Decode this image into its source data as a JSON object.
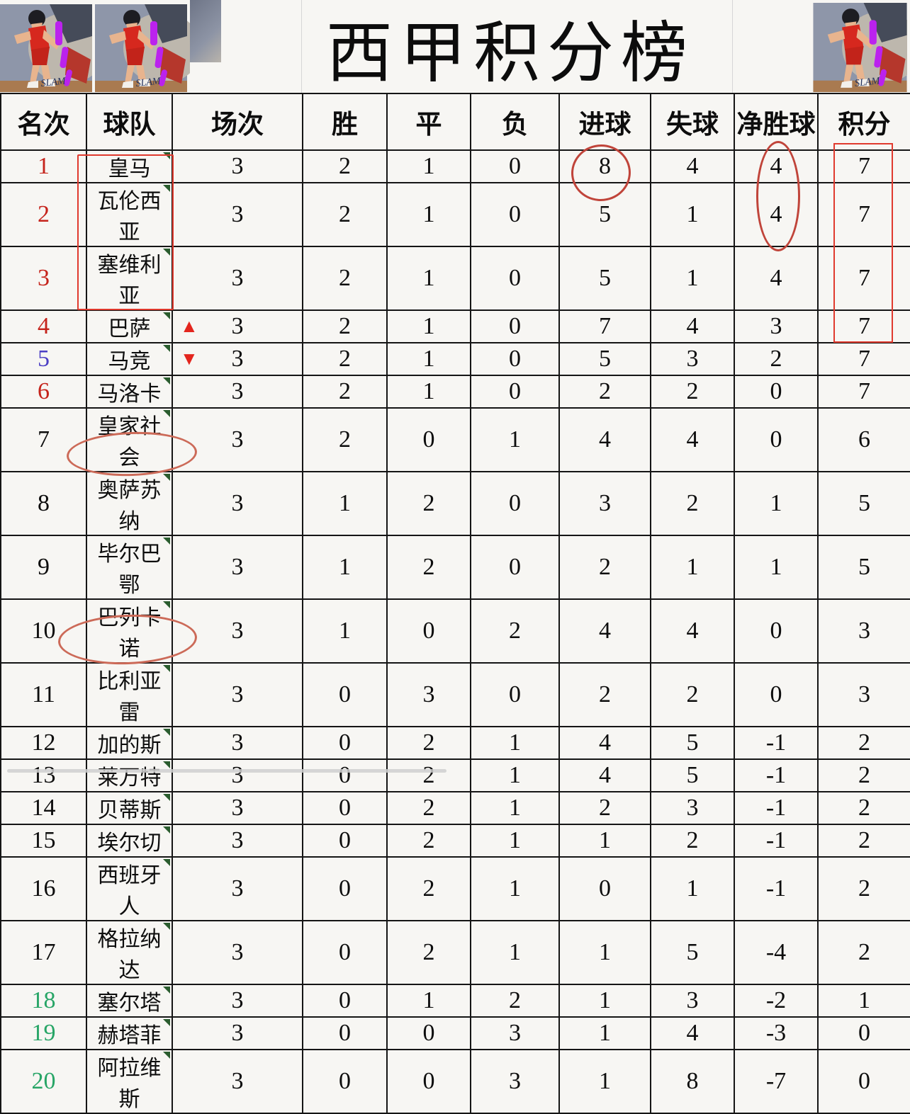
{
  "page_title": "西甲积分榜",
  "icons": {
    "trend_up": "▲",
    "trend_down": "▼",
    "comment_marker": "green-corner-triangle",
    "decor_left_1": "basketball-player-illustration",
    "decor_left_2": "basketball-player-illustration",
    "decor_right": "basketball-player-illustration"
  },
  "colors": {
    "rank_red": "#c5231b",
    "rank_blue": "#4b3fc4",
    "rank_green": "#27a566",
    "annotation_box_red": "#e03a2e",
    "annotation_ellipse_red": "#c0443a",
    "annotation_soft_red": "#cc6a58",
    "arrow_red": "#e3251d",
    "comment_triangle_green": "#2a5c2e"
  },
  "chart_data": {
    "type": "table",
    "title": "西甲积分榜",
    "columns": [
      "名次",
      "球队",
      "场次",
      "胜",
      "平",
      "负",
      "进球",
      "失球",
      "净胜球",
      "积分"
    ],
    "rows": [
      {
        "rank": "1",
        "team": "皇马",
        "played": "3",
        "win": "2",
        "draw": "1",
        "loss": "0",
        "goals_for": "8",
        "goals_against": "4",
        "goal_diff": "4",
        "points": "7",
        "rank_color": "red",
        "trend": ""
      },
      {
        "rank": "2",
        "team": "瓦伦西亚",
        "played": "3",
        "win": "2",
        "draw": "1",
        "loss": "0",
        "goals_for": "5",
        "goals_against": "1",
        "goal_diff": "4",
        "points": "7",
        "rank_color": "red",
        "trend": ""
      },
      {
        "rank": "3",
        "team": "塞维利亚",
        "played": "3",
        "win": "2",
        "draw": "1",
        "loss": "0",
        "goals_for": "5",
        "goals_against": "1",
        "goal_diff": "4",
        "points": "7",
        "rank_color": "red",
        "trend": ""
      },
      {
        "rank": "4",
        "team": "巴萨",
        "played": "3",
        "win": "2",
        "draw": "1",
        "loss": "0",
        "goals_for": "7",
        "goals_against": "4",
        "goal_diff": "3",
        "points": "7",
        "rank_color": "red",
        "trend": "up"
      },
      {
        "rank": "5",
        "team": "马竞",
        "played": "3",
        "win": "2",
        "draw": "1",
        "loss": "0",
        "goals_for": "5",
        "goals_against": "3",
        "goal_diff": "2",
        "points": "7",
        "rank_color": "blue",
        "trend": "down"
      },
      {
        "rank": "6",
        "team": "马洛卡",
        "played": "3",
        "win": "2",
        "draw": "1",
        "loss": "0",
        "goals_for": "2",
        "goals_against": "2",
        "goal_diff": "0",
        "points": "7",
        "rank_color": "red",
        "trend": ""
      },
      {
        "rank": "7",
        "team": "皇家社会",
        "played": "3",
        "win": "2",
        "draw": "0",
        "loss": "1",
        "goals_for": "4",
        "goals_against": "4",
        "goal_diff": "0",
        "points": "6",
        "rank_color": "black",
        "trend": ""
      },
      {
        "rank": "8",
        "team": "奥萨苏纳",
        "played": "3",
        "win": "1",
        "draw": "2",
        "loss": "0",
        "goals_for": "3",
        "goals_against": "2",
        "goal_diff": "1",
        "points": "5",
        "rank_color": "black",
        "trend": ""
      },
      {
        "rank": "9",
        "team": "毕尔巴鄂",
        "played": "3",
        "win": "1",
        "draw": "2",
        "loss": "0",
        "goals_for": "2",
        "goals_against": "1",
        "goal_diff": "1",
        "points": "5",
        "rank_color": "black",
        "trend": ""
      },
      {
        "rank": "10",
        "team": "巴列卡诺",
        "played": "3",
        "win": "1",
        "draw": "0",
        "loss": "2",
        "goals_for": "4",
        "goals_against": "4",
        "goal_diff": "0",
        "points": "3",
        "rank_color": "black",
        "trend": ""
      },
      {
        "rank": "11",
        "team": "比利亚雷",
        "played": "3",
        "win": "0",
        "draw": "3",
        "loss": "0",
        "goals_for": "2",
        "goals_against": "2",
        "goal_diff": "0",
        "points": "3",
        "rank_color": "black",
        "trend": ""
      },
      {
        "rank": "12",
        "team": "加的斯",
        "played": "3",
        "win": "0",
        "draw": "2",
        "loss": "1",
        "goals_for": "4",
        "goals_against": "5",
        "goal_diff": "-1",
        "points": "2",
        "rank_color": "black",
        "trend": ""
      },
      {
        "rank": "13",
        "team": "莱万特",
        "played": "3",
        "win": "0",
        "draw": "2",
        "loss": "1",
        "goals_for": "4",
        "goals_against": "5",
        "goal_diff": "-1",
        "points": "2",
        "rank_color": "black",
        "trend": ""
      },
      {
        "rank": "14",
        "team": "贝蒂斯",
        "played": "3",
        "win": "0",
        "draw": "2",
        "loss": "1",
        "goals_for": "2",
        "goals_against": "3",
        "goal_diff": "-1",
        "points": "2",
        "rank_color": "black",
        "trend": ""
      },
      {
        "rank": "15",
        "team": "埃尔切",
        "played": "3",
        "win": "0",
        "draw": "2",
        "loss": "1",
        "goals_for": "1",
        "goals_against": "2",
        "goal_diff": "-1",
        "points": "2",
        "rank_color": "black",
        "trend": ""
      },
      {
        "rank": "16",
        "team": "西班牙人",
        "played": "3",
        "win": "0",
        "draw": "2",
        "loss": "1",
        "goals_for": "0",
        "goals_against": "1",
        "goal_diff": "-1",
        "points": "2",
        "rank_color": "black",
        "trend": ""
      },
      {
        "rank": "17",
        "team": "格拉纳达",
        "played": "3",
        "win": "0",
        "draw": "2",
        "loss": "1",
        "goals_for": "1",
        "goals_against": "5",
        "goal_diff": "-4",
        "points": "2",
        "rank_color": "black",
        "trend": ""
      },
      {
        "rank": "18",
        "team": "塞尔塔",
        "played": "3",
        "win": "0",
        "draw": "1",
        "loss": "2",
        "goals_for": "1",
        "goals_against": "3",
        "goal_diff": "-2",
        "points": "1",
        "rank_color": "green",
        "trend": ""
      },
      {
        "rank": "19",
        "team": "赫塔菲",
        "played": "3",
        "win": "0",
        "draw": "0",
        "loss": "3",
        "goals_for": "1",
        "goals_against": "4",
        "goal_diff": "-3",
        "points": "0",
        "rank_color": "green",
        "trend": ""
      },
      {
        "rank": "20",
        "team": "阿拉维斯",
        "played": "3",
        "win": "0",
        "draw": "0",
        "loss": "3",
        "goals_for": "1",
        "goals_against": "8",
        "goal_diff": "-7",
        "points": "0",
        "rank_color": "green",
        "trend": ""
      }
    ]
  },
  "annotations": [
    {
      "shape": "rectangle",
      "marks": "球队列 第1-5名 (皇马~马竞)"
    },
    {
      "shape": "circle",
      "marks": "皇马 进球 8"
    },
    {
      "shape": "ellipse",
      "marks": "净胜球 4/4/4 (第1-3名)"
    },
    {
      "shape": "rectangle",
      "marks": "积分 7 (第1-6名)"
    },
    {
      "shape": "ellipse",
      "marks": "巴列卡诺"
    },
    {
      "shape": "ellipse",
      "marks": "西班牙人"
    }
  ]
}
